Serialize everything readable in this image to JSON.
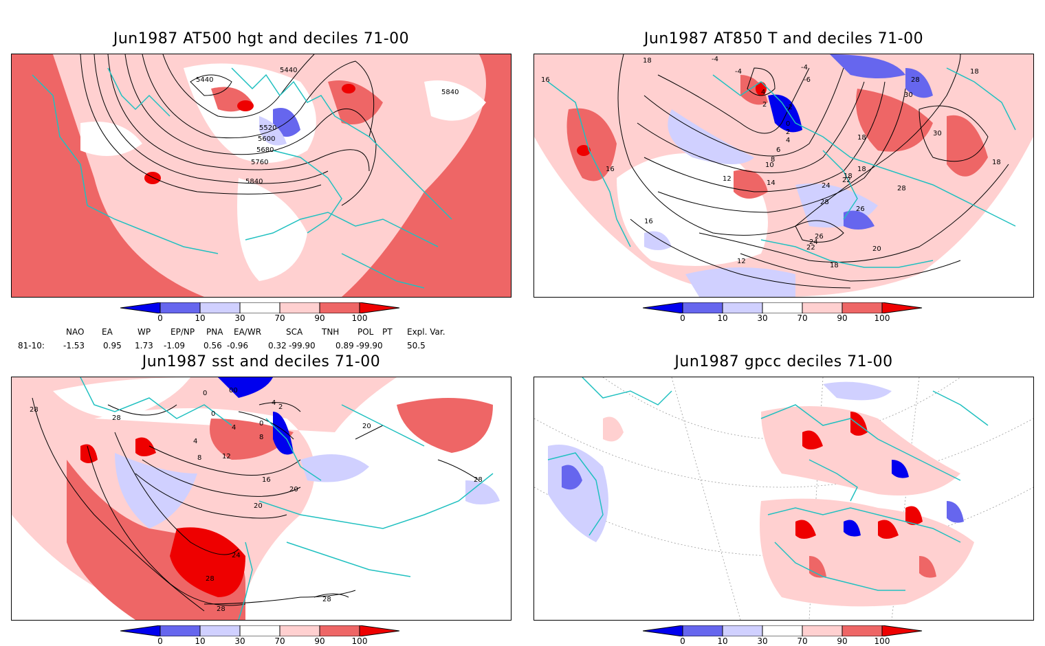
{
  "panels": [
    {
      "id": "p1",
      "title": "Jun1987 AT500 hgt and deciles 71-00",
      "contour_labels": [
        "5440",
        "5440",
        "5520",
        "5600",
        "5680",
        "5760",
        "5840",
        "5840"
      ]
    },
    {
      "id": "p2",
      "title": "Jun1987 AT850 T and deciles 71-00",
      "contour_labels": [
        "18",
        "16",
        "-4",
        "-4",
        "-4",
        "-6",
        "4",
        "2",
        "-2",
        "0",
        "2",
        "4",
        "6",
        "8",
        "10",
        "12",
        "14",
        "16",
        "18",
        "18",
        "12",
        "18",
        "22",
        "24",
        "28",
        "26",
        "26",
        "24",
        "22",
        "20",
        "18",
        "16",
        "28",
        "30",
        "30",
        "28",
        "18",
        "18"
      ]
    },
    {
      "id": "p3",
      "title": "Jun1987 sst and deciles 71-00",
      "contour_labels": [
        "28",
        "28",
        "0",
        "00",
        "4",
        "2",
        "0",
        "0",
        "4",
        "4",
        "8",
        "8",
        "12",
        "16",
        "20",
        "20",
        "20",
        "24",
        "28",
        "28",
        "28",
        "28"
      ]
    },
    {
      "id": "p4",
      "title": "Jun1987 gpcc deciles 71-00",
      "contour_labels": []
    }
  ],
  "colorbar": {
    "labels": [
      "0",
      "10",
      "30",
      "70",
      "90",
      "100"
    ],
    "colors": [
      "#0000ee",
      "#6666ee",
      "#d0d0ff",
      "#ffffff",
      "#ffd0d0",
      "#ee6666",
      "#ee0000"
    ]
  },
  "indices": {
    "headers": [
      "NAO",
      "EA",
      "WP",
      "EP/NP",
      "PNA",
      "EA/WR",
      "SCA",
      "TNH",
      "POL",
      "PT",
      "Expl. Var."
    ],
    "row_label": "81-10:",
    "values": [
      "-1.53",
      "0.95",
      "1.73",
      "-1.09",
      "0.56",
      "-0.96",
      "0.32",
      "-99.90",
      "0.89",
      "-99.90",
      "50.5"
    ]
  }
}
